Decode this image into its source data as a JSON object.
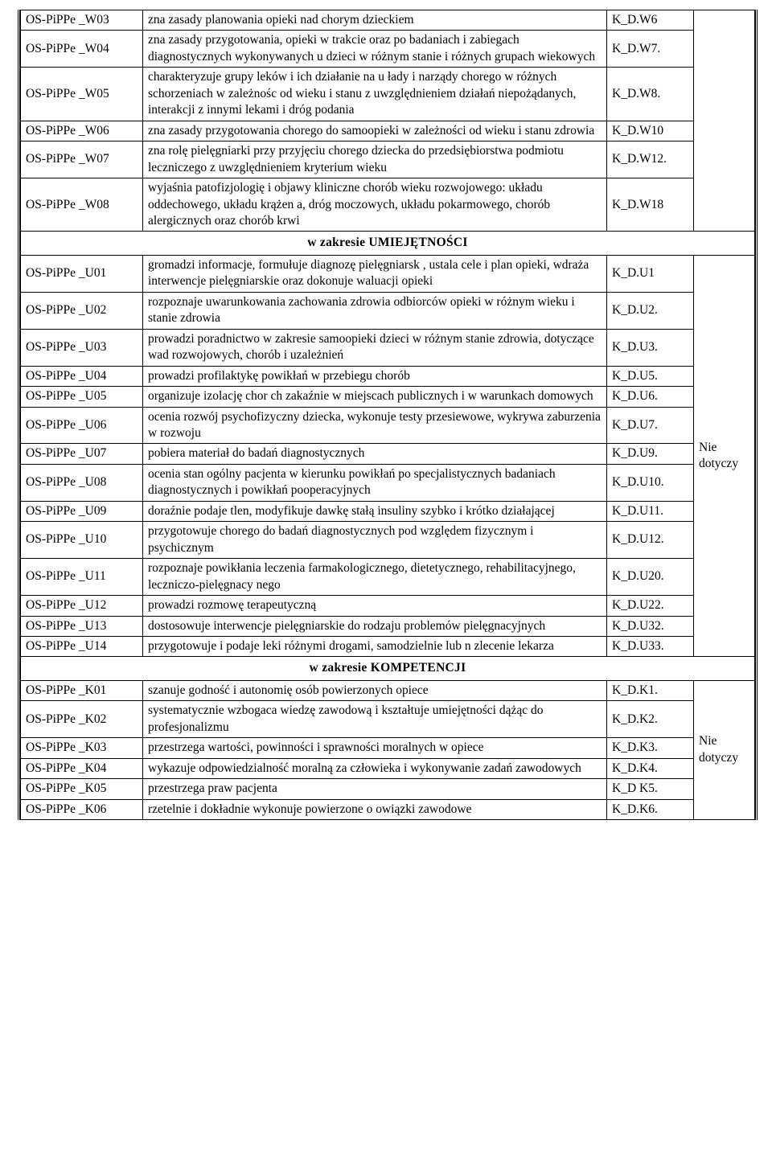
{
  "section_wiedza_note": "",
  "section_umiejetnosci": "w zakresie UMIEJĘTNOŚCI",
  "section_kompetencji": "w zakresie KOMPETENCJI",
  "note_nie_dotyczy": "Nie dotyczy",
  "w": [
    {
      "code": "OS-PiPPe _W03",
      "desc": "zna zasady planowania opieki nad chorym dzieckiem",
      "ref": "K_D.W6"
    },
    {
      "code": "OS-PiPPe _W04",
      "desc": "zna zasady przygotowania, opieki w trakcie oraz po badaniach i zabiegach diagnostycznych wykonywanych   u dzieci w różnym stanie i różnych grupach wiekowych",
      "ref": "K_D.W7."
    },
    {
      "code": "OS-PiPPe _W05",
      "desc": "charakteryzuje grupy leków i ich działanie na u   łady i narządy chorego w różnych schorzeniach w zależnośc   od wieku i stanu z uwzględnieniem działań niepożądanych, interakcji z innymi lekami i dróg podania",
      "ref": "K_D.W8."
    },
    {
      "code": "OS-PiPPe _W06",
      "desc": "zna zasady przygotowania chorego do samoopieki w zależności od wieku i stanu zdrowia",
      "ref": "K_D.W10"
    },
    {
      "code": "OS-PiPPe _W07",
      "desc": "zna rolę pielęgniarki przy przyjęciu chorego dziecka do przedsiębiorstwa podmiotu leczniczego z  uwzględnieniem kryterium wieku",
      "ref": "K_D.W12."
    },
    {
      "code": "OS-PiPPe _W08",
      "desc": "wyjaśnia patofizjologię i objawy kliniczne chorób wieku rozwojowego: układu oddechowego, układu krążen   a, dróg moczowych, układu pokarmowego, chorób alergicznych oraz chorób krwi",
      "ref": "K_D.W18"
    }
  ],
  "u": [
    {
      "code": "OS-PiPPe _U01",
      "desc": "gromadzi informacje, formułuje diagnozę pielęgniarsk  , ustala cele i plan opieki, wdraża interwencje pielęgniarskie oraz dokonuje    waluacji opieki",
      "ref": "K_D.U1"
    },
    {
      "code": "OS-PiPPe _U02",
      "desc": "rozpoznaje uwarunkowania zachowania zdrowia odbiorców opieki w różnym wieku i stanie zdrowia",
      "ref": "K_D.U2."
    },
    {
      "code": "OS-PiPPe _U03",
      "desc": "prowadzi poradnictwo w zakresie samoopieki dzieci w różnym stanie zdrowia, dotyczące wad rozwojowych, chorób i uzależnień",
      "ref": "K_D.U3."
    },
    {
      "code": "OS-PiPPe _U04",
      "desc": "prowadzi profilaktykę powikłań w przebiegu chorób",
      "ref": "K_D.U5."
    },
    {
      "code": "OS-PiPPe _U05",
      "desc": "organizuje izolację chor   ch zakaźnie w miejscach publicznych i w warunkach domowych",
      "ref": "K_D.U6."
    },
    {
      "code": "OS-PiPPe _U06",
      "desc": "ocenia rozwój psychofizyczny dziecka, wykonuje testy przesiewowe, wykrywa zaburzenia w rozwoju",
      "ref": "K_D.U7."
    },
    {
      "code": "OS-PiPPe _U07",
      "desc": "pobiera materiał do badań diagnostycznych",
      "ref": "K_D.U9."
    },
    {
      "code": "OS-PiPPe _U08",
      "desc": "ocenia stan ogólny pacjenta w kierunku powikłań po specjalistycznych badaniach diagnostycznych i powikłań pooperacyjnych",
      "ref": "K_D.U10."
    },
    {
      "code": "OS-PiPPe _U09",
      "desc": "doraźnie podaje tlen, modyfikuje dawkę stałą insuliny szybko i krótko działającej",
      "ref": "K_D.U11."
    },
    {
      "code": "OS-PiPPe _U10",
      "desc": "przygotowuje chorego do badań diagnostycznych pod względem fizycznym i psychicznym",
      "ref": "K_D.U12."
    },
    {
      "code": "OS-PiPPe _U11",
      "desc": "rozpoznaje powikłania leczenia farmakologicznego, dietetycznego, rehabilitacyjnego, leczniczo-pielęgnacy   nego",
      "ref": "K_D.U20."
    },
    {
      "code": "OS-PiPPe _U12",
      "desc": "prowadzi rozmowę terapeutyczną",
      "ref": "K_D.U22."
    },
    {
      "code": "OS-PiPPe _U13",
      "desc": "dostosowuje interwencje pielęgniarskie do rodzaju problemów pielęgnacyjnych",
      "ref": "K_D.U32."
    },
    {
      "code": "OS-PiPPe _U14",
      "desc": "przygotowuje i podaje leki różnymi drogami, samodzielnie lub n   zlecenie lekarza",
      "ref": "K_D.U33."
    }
  ],
  "k": [
    {
      "code": "OS-PiPPe _K01",
      "desc": "szanuje godność i autonomię osób powierzonych opiece",
      "ref": "K_D.K1."
    },
    {
      "code": "OS-PiPPe _K02",
      "desc": "systematycznie wzbogaca wiedzę zawodową i kształtuje umiejętności dążąc do profesjonalizmu",
      "ref": "K_D.K2."
    },
    {
      "code": "OS-PiPPe _K03",
      "desc": "przestrzega wartości, powinności i sprawności moralnych   w opiece",
      "ref": "K_D.K3."
    },
    {
      "code": "OS-PiPPe _K04",
      "desc": "wykazuje odpowiedzialność moralną za człowieka i wykonywanie zadań zawodowych",
      "ref": "K_D.K4."
    },
    {
      "code": "OS-PiPPe _K05",
      "desc": "przestrzega praw pacjenta",
      "ref": "K_D  K5."
    },
    {
      "code": "OS-PiPPe _K06",
      "desc": "rzetelnie i dokładnie wykonuje powierzone o   owiązki zawodowe",
      "ref": "K_D.K6."
    }
  ]
}
